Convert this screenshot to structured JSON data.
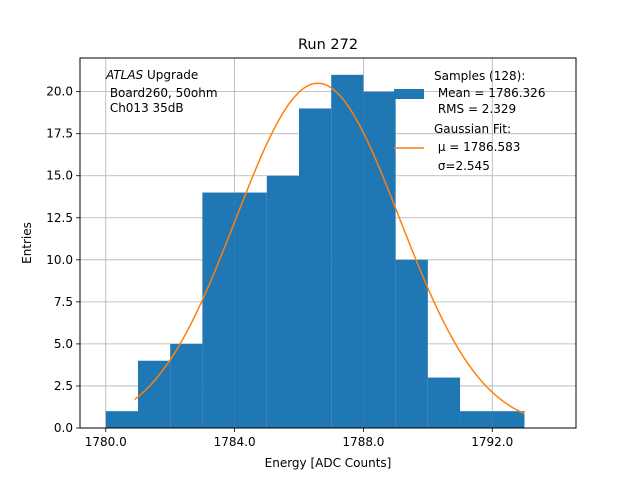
{
  "chart_data": {
    "type": "bar",
    "title": "Run 272",
    "xlabel": "Energy [ADC Counts]",
    "ylabel": "Entries",
    "xlim": [
      1779.2,
      1794.6
    ],
    "ylim": [
      0,
      22
    ],
    "grid": true,
    "x_ticks": [
      1780.0,
      1784.0,
      1788.0,
      1792.0
    ],
    "x_tick_labels": [
      "1780.0",
      "1784.0",
      "1788.0",
      "1792.0"
    ],
    "y_ticks": [
      0,
      2.5,
      5,
      7.5,
      10,
      12.5,
      15,
      17.5,
      20
    ],
    "y_tick_labels": [
      "0.0",
      "2.5",
      "5.0",
      "7.5",
      "10.0",
      "12.5",
      "15.0",
      "17.5",
      "20.0"
    ],
    "histogram": {
      "name": "Samples",
      "color": "#1f77b4",
      "bin_edges": [
        1780,
        1781,
        1782,
        1783,
        1784,
        1785,
        1786,
        1787,
        1788,
        1789,
        1790,
        1791,
        1792,
        1793
      ],
      "counts": [
        1,
        4,
        5,
        14,
        14,
        15,
        19,
        21,
        20,
        10,
        3,
        1,
        1
      ]
    },
    "fit": {
      "name": "Gaussian Fit",
      "color": "#ff7f0e",
      "mu": 1786.583,
      "sigma": 2.545,
      "x_range": [
        1780.9,
        1793.0
      ],
      "peak_entries": 20.5
    },
    "annotation": {
      "italic": "ATLAS",
      "rest": " Upgrade",
      "line2": " Board260, 50ohm",
      "line3": " Ch013 35dB"
    },
    "legend": {
      "placement": "top-right",
      "entries": [
        {
          "lines": [
            "Samples (128):",
            " Mean = 1786.326",
            " RMS = 2.329"
          ]
        },
        {
          "lines": [
            "Gaussian Fit:",
            " μ = 1786.583",
            " σ=2.545"
          ]
        }
      ]
    }
  }
}
